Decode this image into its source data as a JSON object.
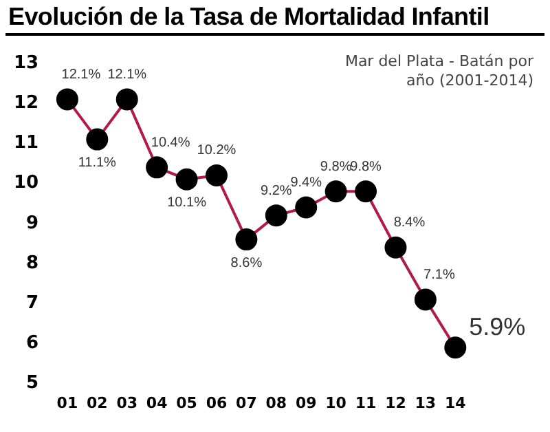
{
  "chart_data": {
    "type": "line",
    "title": "Evolución de la Tasa de Mortalidad Infantil",
    "subtitle": "Mar del Plata - Batán por año (2001-2014)",
    "categories": [
      "01",
      "02",
      "03",
      "04",
      "05",
      "06",
      "07",
      "08",
      "09",
      "10",
      "11",
      "12",
      "13",
      "14"
    ],
    "series": [
      {
        "color": "#b01c48",
        "values": [
          12.1,
          11.1,
          12.1,
          10.4,
          10.1,
          10.2,
          8.6,
          9.2,
          9.4,
          9.8,
          9.8,
          8.4,
          7.1,
          5.9
        ],
        "value_labels": [
          "12.1%",
          "11.1%",
          "12.1%",
          "10.4%",
          "10.1%",
          "10.2%",
          "8.6%",
          "9.2%",
          "9.4%",
          "9.8%",
          "9.8%",
          "8.4%",
          "7.1%",
          "5.9%"
        ]
      }
    ],
    "ylim": [
      5,
      13
    ],
    "yticks": [
      5,
      6,
      7,
      8,
      9,
      10,
      11,
      12,
      13
    ],
    "grid": false,
    "legend": false,
    "marker": "circle",
    "line_style": "solid"
  }
}
